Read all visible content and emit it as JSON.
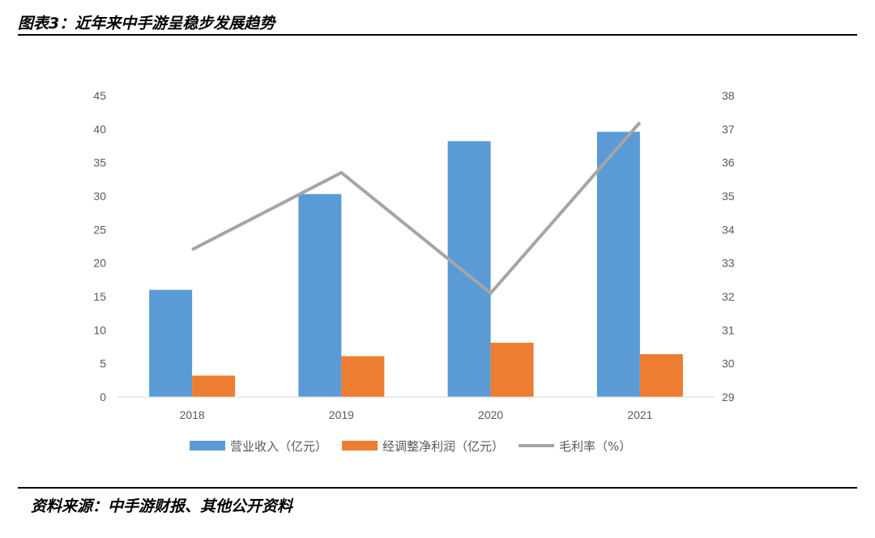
{
  "figure": {
    "title": "图表3：近年来中手游呈稳步发展趋势",
    "source": "资料来源：中手游财报、其他公开资料"
  },
  "colors": {
    "revenue": "#5b9bd5",
    "profit": "#ed7d31",
    "margin": "#a5a5a5"
  },
  "chart_data": {
    "type": "bar",
    "title": "",
    "categories": [
      "2018",
      "2019",
      "2020",
      "2021"
    ],
    "series": [
      {
        "name": "营业收入（亿元）",
        "type": "bar",
        "axis": "left",
        "values": [
          16,
          30.3,
          38.2,
          39.6
        ]
      },
      {
        "name": "经调整净利润（亿元）",
        "type": "bar",
        "axis": "left",
        "values": [
          3.2,
          6.1,
          8.1,
          6.4
        ]
      },
      {
        "name": "毛利率（%）",
        "type": "line",
        "axis": "right",
        "values": [
          33.4,
          35.7,
          32.1,
          37.2
        ]
      }
    ],
    "ylim_left": [
      0,
      45
    ],
    "yticks_left": [
      "0",
      "5",
      "10",
      "15",
      "20",
      "25",
      "30",
      "35",
      "40",
      "45"
    ],
    "ylim_right": [
      29,
      38
    ],
    "yticks_right": [
      "29",
      "30",
      "31",
      "32",
      "33",
      "34",
      "35",
      "36",
      "37",
      "38"
    ],
    "grid": false,
    "legend_position": "bottom"
  }
}
